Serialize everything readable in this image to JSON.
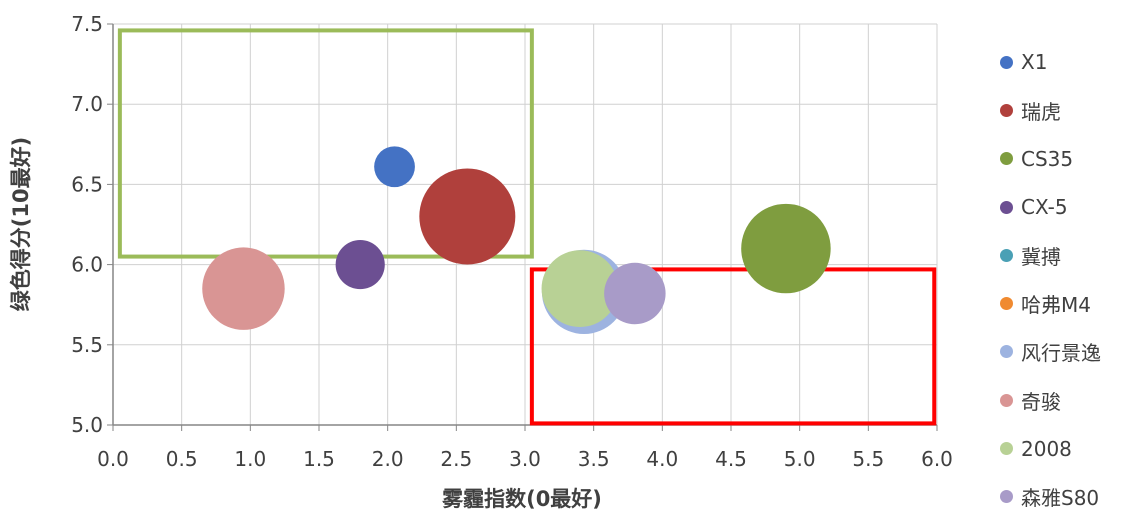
{
  "chart_data": {
    "type": "bubble",
    "xlabel": "雾霾指数(0最好)",
    "ylabel": "绿色得分(10最好)",
    "xlim": [
      0.0,
      6.0
    ],
    "ylim": [
      5.0,
      7.5
    ],
    "x_ticks": [
      "0.0",
      "0.5",
      "1.0",
      "1.5",
      "2.0",
      "2.5",
      "3.0",
      "3.5",
      "4.0",
      "4.5",
      "5.0",
      "5.5",
      "6.0"
    ],
    "y_ticks": [
      "5.0",
      "5.5",
      "6.0",
      "6.5",
      "7.0",
      "7.5"
    ],
    "grid": true,
    "legend_position": "right",
    "series": [
      {
        "name": "X1",
        "x": 2.05,
        "y": 6.61,
        "size": 0.11,
        "color": "#4472c4"
      },
      {
        "name": "瑞虎",
        "x": 2.58,
        "y": 6.3,
        "size": 0.61,
        "color": "#b0403c"
      },
      {
        "name": "CS35",
        "x": 4.9,
        "y": 6.1,
        "size": 0.53,
        "color": "#7f9d3f"
      },
      {
        "name": "CX-5",
        "x": 1.8,
        "y": 6.0,
        "size": 0.16,
        "color": "#6c4f92"
      },
      {
        "name": "冀搏",
        "x": null,
        "y": null,
        "size": null,
        "color": "#4aa0b5"
      },
      {
        "name": "哈弗M4",
        "x": null,
        "y": null,
        "size": null,
        "color": "#f08a30"
      },
      {
        "name": "风行景逸",
        "x": 3.43,
        "y": 5.83,
        "size": 0.47,
        "color": "#9db3e0"
      },
      {
        "name": "奇骏",
        "x": 0.95,
        "y": 5.85,
        "size": 0.45,
        "color": "#d99594"
      },
      {
        "name": "2008",
        "x": 3.4,
        "y": 5.85,
        "size": 0.39,
        "color": "#b8d195"
      },
      {
        "name": "森雅S80",
        "x": 3.8,
        "y": 5.82,
        "size": 0.25,
        "color": "#a89bc8"
      }
    ],
    "highlight_boxes": [
      {
        "color": "#9bbb59",
        "x_range": [
          0.05,
          3.05
        ],
        "y_range": [
          6.05,
          7.46
        ]
      },
      {
        "color": "#ff0000",
        "x_range": [
          3.05,
          5.98
        ],
        "y_range": [
          5.01,
          5.97
        ]
      }
    ]
  }
}
